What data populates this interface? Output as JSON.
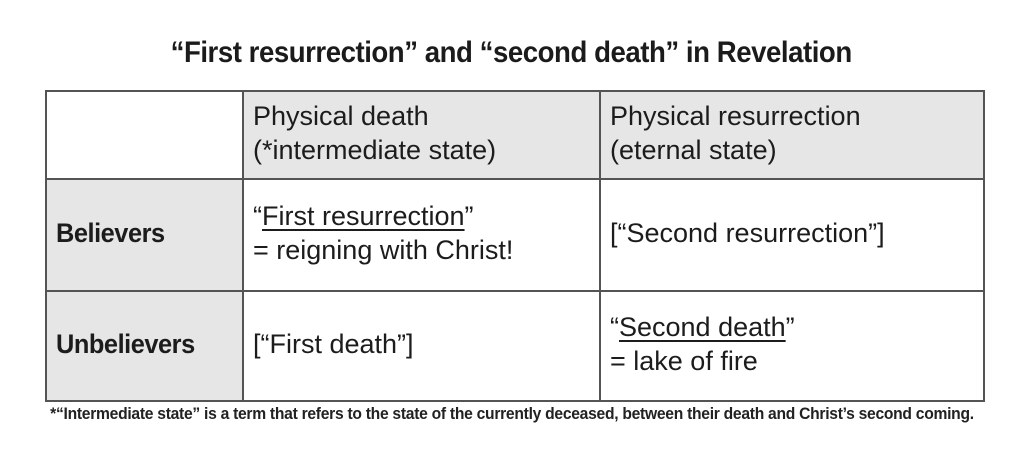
{
  "title": "“First resurrection” and “second death” in Revelation",
  "table": {
    "header": {
      "corner": "",
      "physical_death": "Physical death\n(*intermediate state)",
      "physical_resurrection": "Physical resurrection\n(eternal state)"
    },
    "rows": {
      "believers": {
        "label": "Believers",
        "physical_death": {
          "open_quote": "“",
          "underlined": "First resurrection",
          "close_quote": "”",
          "line2": "= reigning with Christ!"
        },
        "physical_resurrection": "[“Second resurrection”]"
      },
      "unbelievers": {
        "label": "Unbelievers",
        "physical_death": "[“First death”]",
        "physical_resurrection": {
          "open_quote": "“",
          "underlined": "Second death",
          "close_quote": "”",
          "line2": "= lake of fire"
        }
      }
    }
  },
  "footnote": "*“Intermediate state” is a term that refers to the state of the currently deceased, between their death and Christ’s second coming.",
  "colors": {
    "shaded_cell_bg": "#e6e6e6",
    "border": "#545454",
    "text": "#1c1c1c",
    "background": "#ffffff"
  }
}
